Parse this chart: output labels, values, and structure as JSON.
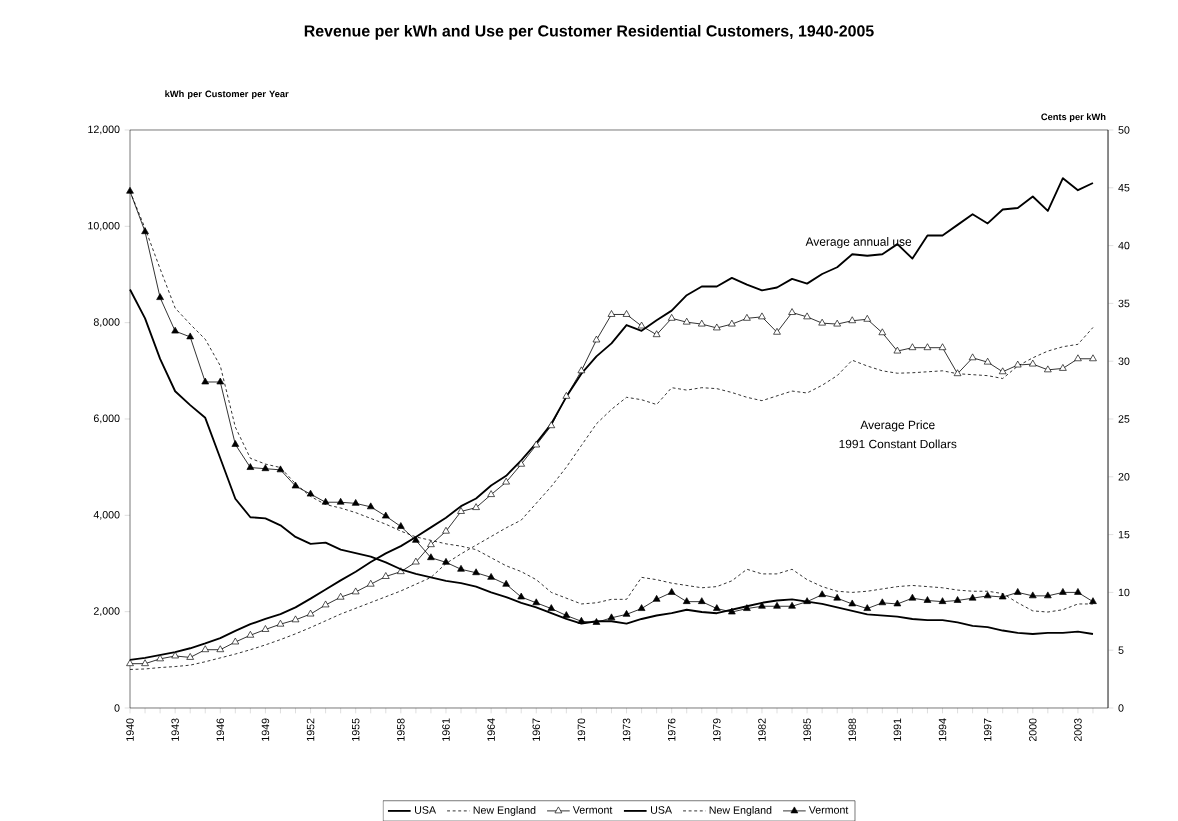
{
  "chart_data": {
    "type": "line",
    "title": "Revenue per kWh and Use per Customer Residential Customers, 1940-2005",
    "ylabel": "kWh per Customer per Year",
    "y2label": "Cents per kWh",
    "x": [
      1940,
      1941,
      1942,
      1943,
      1944,
      1945,
      1946,
      1947,
      1948,
      1949,
      1950,
      1951,
      1952,
      1953,
      1954,
      1955,
      1956,
      1957,
      1958,
      1959,
      1960,
      1961,
      1962,
      1963,
      1964,
      1965,
      1966,
      1967,
      1968,
      1969,
      1970,
      1971,
      1972,
      1973,
      1974,
      1975,
      1976,
      1977,
      1978,
      1979,
      1980,
      1981,
      1982,
      1983,
      1984,
      1985,
      1986,
      1987,
      1988,
      1989,
      1990,
      1991,
      1992,
      1993,
      1994,
      1995,
      1996,
      1997,
      1998,
      1999,
      2000,
      2001,
      2002,
      2003,
      2004
    ],
    "xlim": [
      1940,
      2005
    ],
    "xticks": [
      1940,
      {
        "value": 1941,
        "label": null
      },
      {
        "value": 1942,
        "label": null
      },
      1943,
      {
        "value": 1944,
        "label": null
      },
      {
        "value": 1945,
        "label": null
      },
      1946,
      {
        "value": 1947,
        "label": null
      },
      {
        "value": 1948,
        "label": null
      },
      1949,
      {
        "value": 1950,
        "label": null
      },
      {
        "value": 1951,
        "label": null
      },
      1952,
      {
        "value": 1953,
        "label": null
      },
      {
        "value": 1954,
        "label": null
      },
      1955,
      {
        "value": 1956,
        "label": null
      },
      {
        "value": 1957,
        "label": null
      },
      1958,
      {
        "value": 1959,
        "label": null
      },
      {
        "value": 1960,
        "label": null
      },
      1961,
      {
        "value": 1962,
        "label": null
      },
      {
        "value": 1963,
        "label": null
      },
      1964,
      {
        "value": 1965,
        "label": null
      },
      {
        "value": 1966,
        "label": null
      },
      1967,
      {
        "value": 1968,
        "label": null
      },
      {
        "value": 1969,
        "label": null
      },
      1970,
      {
        "value": 1971,
        "label": null
      },
      {
        "value": 1972,
        "label": null
      },
      1973,
      {
        "value": 1974,
        "label": null
      },
      {
        "value": 1975,
        "label": null
      },
      1976,
      {
        "value": 1977,
        "label": null
      },
      {
        "value": 1978,
        "label": null
      },
      1979,
      {
        "value": 1980,
        "label": null
      },
      {
        "value": 1981,
        "label": null
      },
      1982,
      {
        "value": 1983,
        "label": null
      },
      {
        "value": 1984,
        "label": null
      },
      1985,
      {
        "value": 1986,
        "label": null
      },
      {
        "value": 1987,
        "label": null
      },
      1988,
      {
        "value": 1989,
        "label": null
      },
      {
        "value": 1990,
        "label": null
      },
      1991,
      {
        "value": 1992,
        "label": null
      },
      {
        "value": 1993,
        "label": null
      },
      1994,
      {
        "value": 1995,
        "label": null
      },
      {
        "value": 1996,
        "label": null
      },
      1997,
      {
        "value": 1998,
        "label": null
      },
      {
        "value": 1999,
        "label": null
      },
      2000,
      {
        "value": 2001,
        "label": null
      },
      {
        "value": 2002,
        "label": null
      },
      2003,
      {
        "value": 2004,
        "label": null
      }
    ],
    "ylim": [
      0,
      12000
    ],
    "yticks": [
      0,
      {
        "value": 2000,
        "label": "2,000"
      },
      {
        "value": 4000,
        "label": "4,000"
      },
      {
        "value": 6000,
        "label": "6,000"
      },
      {
        "value": 8000,
        "label": "8,000"
      },
      {
        "value": 10000,
        "label": "10,000"
      },
      {
        "value": 12000,
        "label": "12,000"
      }
    ],
    "y2lim": [
      0,
      50
    ],
    "y2ticks": [
      0,
      5,
      10,
      15,
      20,
      25,
      30,
      35,
      40,
      45,
      50
    ],
    "legend": "bottom",
    "grid": false,
    "series": [
      {
        "name": "USA",
        "color": "#000000",
        "marker": "none",
        "line_style": "solid",
        "values": [
          1000,
          1040,
          1100,
          1160,
          1240,
          1340,
          1450,
          1600,
          1740,
          1850,
          1950,
          2090,
          2270,
          2460,
          2650,
          2830,
          3030,
          3210,
          3360,
          3550,
          3750,
          3950,
          4190,
          4350,
          4620,
          4820,
          5140,
          5500,
          5900,
          6460,
          6940,
          7300,
          7570,
          7950,
          7830,
          8050,
          8250,
          8570,
          8750,
          8750,
          8930,
          8790,
          8670,
          8730,
          8910,
          8810,
          9010,
          9150,
          9420,
          9390,
          9420,
          9630,
          9330,
          9810,
          9810,
          10030,
          10250,
          10060,
          10350,
          10380,
          10620,
          10320,
          11000,
          10750,
          10900
        ]
      },
      {
        "name": "New  England",
        "color": "#000000",
        "marker": "none",
        "line_style": "dotted",
        "values": [
          800,
          810,
          840,
          860,
          890,
          960,
          1040,
          1120,
          1210,
          1310,
          1420,
          1540,
          1670,
          1810,
          1950,
          2070,
          2190,
          2310,
          2430,
          2570,
          2710,
          3000,
          3200,
          3380,
          3560,
          3740,
          3900,
          4250,
          4600,
          5000,
          5450,
          5900,
          6200,
          6450,
          6400,
          6300,
          6650,
          6600,
          6650,
          6630,
          6550,
          6450,
          6380,
          6480,
          6580,
          6540,
          6700,
          6900,
          7220,
          7100,
          7000,
          6950,
          6960,
          6980,
          7000,
          6940,
          6920,
          6900,
          6840,
          7100,
          7270,
          7410,
          7500,
          7550,
          7900
        ]
      },
      {
        "name": "Vermont",
        "color": "#000000",
        "marker": "triangle",
        "line_style": "solid",
        "values": [
          920,
          920,
          1020,
          1080,
          1050,
          1210,
          1210,
          1370,
          1510,
          1630,
          1740,
          1830,
          1950,
          2140,
          2300,
          2410,
          2570,
          2730,
          2830,
          3030,
          3390,
          3670,
          4080,
          4160,
          4430,
          4690,
          5060,
          5460,
          5860,
          6470,
          7000,
          7640,
          8170,
          8170,
          7930,
          7750,
          8090,
          8010,
          7970,
          7890,
          7970,
          8090,
          8120,
          7800,
          8210,
          8120,
          7990,
          7970,
          8040,
          8070,
          7790,
          7410,
          7480,
          7480,
          7480,
          6940,
          7270,
          7180,
          6980,
          7120,
          7140,
          7020,
          7050,
          7250,
          7250
        ]
      },
      {
        "name": "USA",
        "color": "#000000",
        "marker": "none",
        "line_style": "solid",
        "axis": "y2",
        "values": [
          36.2,
          33.7,
          30.2,
          27.4,
          26.2,
          25.1,
          21.6,
          18.1,
          16.5,
          16.4,
          15.8,
          14.8,
          14.2,
          14.3,
          13.7,
          13.4,
          13.1,
          12.6,
          12.0,
          11.6,
          11.3,
          11.0,
          10.8,
          10.5,
          10.0,
          9.6,
          9.1,
          8.7,
          8.2,
          7.7,
          7.3,
          7.5,
          7.5,
          7.3,
          7.7,
          8.0,
          8.2,
          8.5,
          8.3,
          8.2,
          8.5,
          8.8,
          9.1,
          9.3,
          9.4,
          9.2,
          9.0,
          8.7,
          8.4,
          8.1,
          8.0,
          7.9,
          7.7,
          7.6,
          7.6,
          7.4,
          7.1,
          7.0,
          6.7,
          6.5,
          6.4,
          6.5,
          6.5,
          6.6,
          6.4
        ]
      },
      {
        "name": "New England",
        "color": "#000000",
        "marker": "none",
        "line_style": "dotted",
        "axis": "y2",
        "values": [
          44.7,
          41.5,
          38.0,
          34.6,
          33.2,
          31.9,
          29.6,
          24.3,
          21.6,
          21.1,
          20.8,
          19.4,
          18.3,
          17.6,
          17.3,
          16.9,
          16.4,
          15.9,
          15.3,
          14.8,
          14.5,
          14.2,
          14.0,
          13.7,
          13.0,
          12.3,
          11.8,
          11.1,
          10.0,
          9.5,
          9.0,
          9.1,
          9.4,
          9.4,
          11.3,
          11.1,
          10.8,
          10.6,
          10.4,
          10.5,
          11.0,
          12.0,
          11.6,
          11.6,
          12.0,
          11.1,
          10.5,
          10.1,
          10.0,
          10.1,
          10.3,
          10.5,
          10.6,
          10.5,
          10.4,
          10.2,
          10.1,
          10.1,
          9.9,
          9.1,
          8.4,
          8.3,
          8.5,
          9.0,
          9.0
        ]
      },
      {
        "name": "Vermont",
        "color": "#000000",
        "marker": "triangle",
        "line_style": "solid",
        "axis": "y2",
        "values": [
          44.7,
          41.2,
          35.5,
          32.6,
          32.1,
          28.2,
          28.2,
          22.8,
          20.8,
          20.7,
          20.6,
          19.2,
          18.5,
          17.8,
          17.8,
          17.7,
          17.4,
          16.6,
          15.7,
          14.5,
          13.0,
          12.6,
          12.0,
          11.7,
          11.3,
          10.7,
          9.6,
          9.1,
          8.6,
          8.0,
          7.5,
          7.4,
          7.8,
          8.1,
          8.6,
          9.4,
          10.0,
          9.2,
          9.2,
          8.6,
          8.3,
          8.6,
          8.8,
          8.8,
          8.8,
          9.2,
          9.8,
          9.5,
          9.0,
          8.6,
          9.1,
          9.0,
          9.5,
          9.3,
          9.2,
          9.3,
          9.5,
          9.7,
          9.6,
          10.0,
          9.7,
          9.7,
          10.0,
          10.0,
          9.2
        ]
      }
    ],
    "annotations": [
      "Average annual use",
      "Average Price",
      "1991 Constant Dollars"
    ]
  }
}
